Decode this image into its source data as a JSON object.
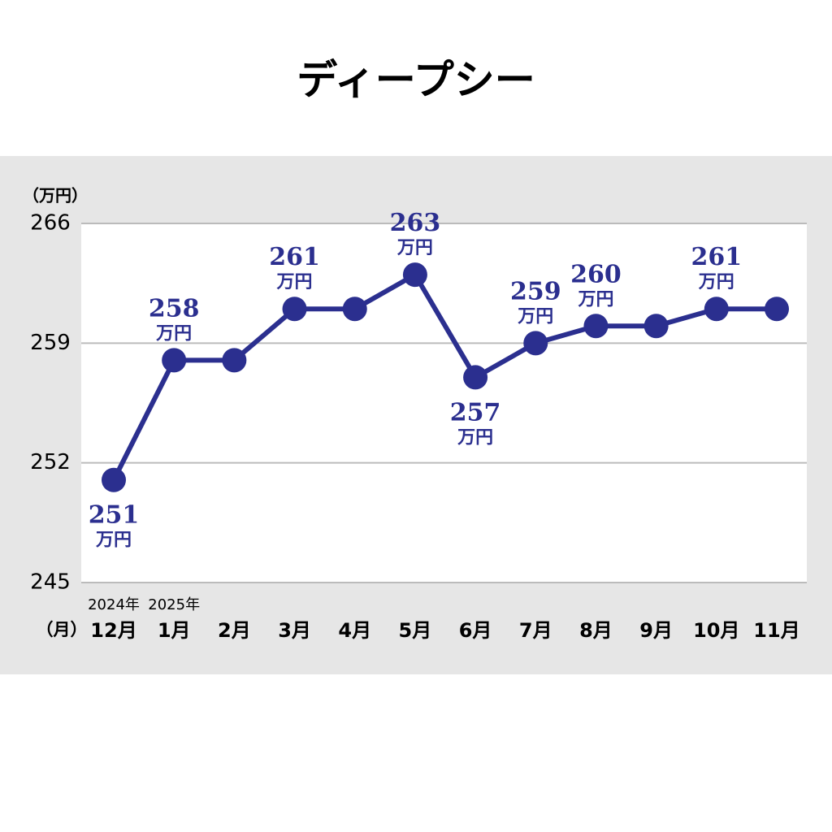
{
  "chart_data": {
    "type": "line",
    "title": "ディープシー",
    "y_unit_label": "（万円）",
    "x_unit_label": "（月）",
    "categories": [
      "12月",
      "1月",
      "2月",
      "3月",
      "4月",
      "5月",
      "6月",
      "7月",
      "8月",
      "9月",
      "10月",
      "11月"
    ],
    "year_labels": [
      "2024年",
      "2025年",
      null,
      null,
      null,
      null,
      null,
      null,
      null,
      null,
      null,
      null
    ],
    "series": [
      {
        "name": "ディープシー",
        "color": "#2b2f8f",
        "values": [
          251,
          258,
          258,
          261,
          261,
          263,
          257,
          259,
          260,
          260,
          261,
          261
        ],
        "value_labels": [
          "251",
          "258",
          null,
          "261",
          null,
          "263",
          "257",
          "259",
          "260",
          null,
          "261",
          null
        ]
      }
    ],
    "value_label_unit": "万円",
    "ylim": [
      245,
      266
    ],
    "yticks": [
      245,
      252,
      259,
      266
    ],
    "grid": true
  }
}
